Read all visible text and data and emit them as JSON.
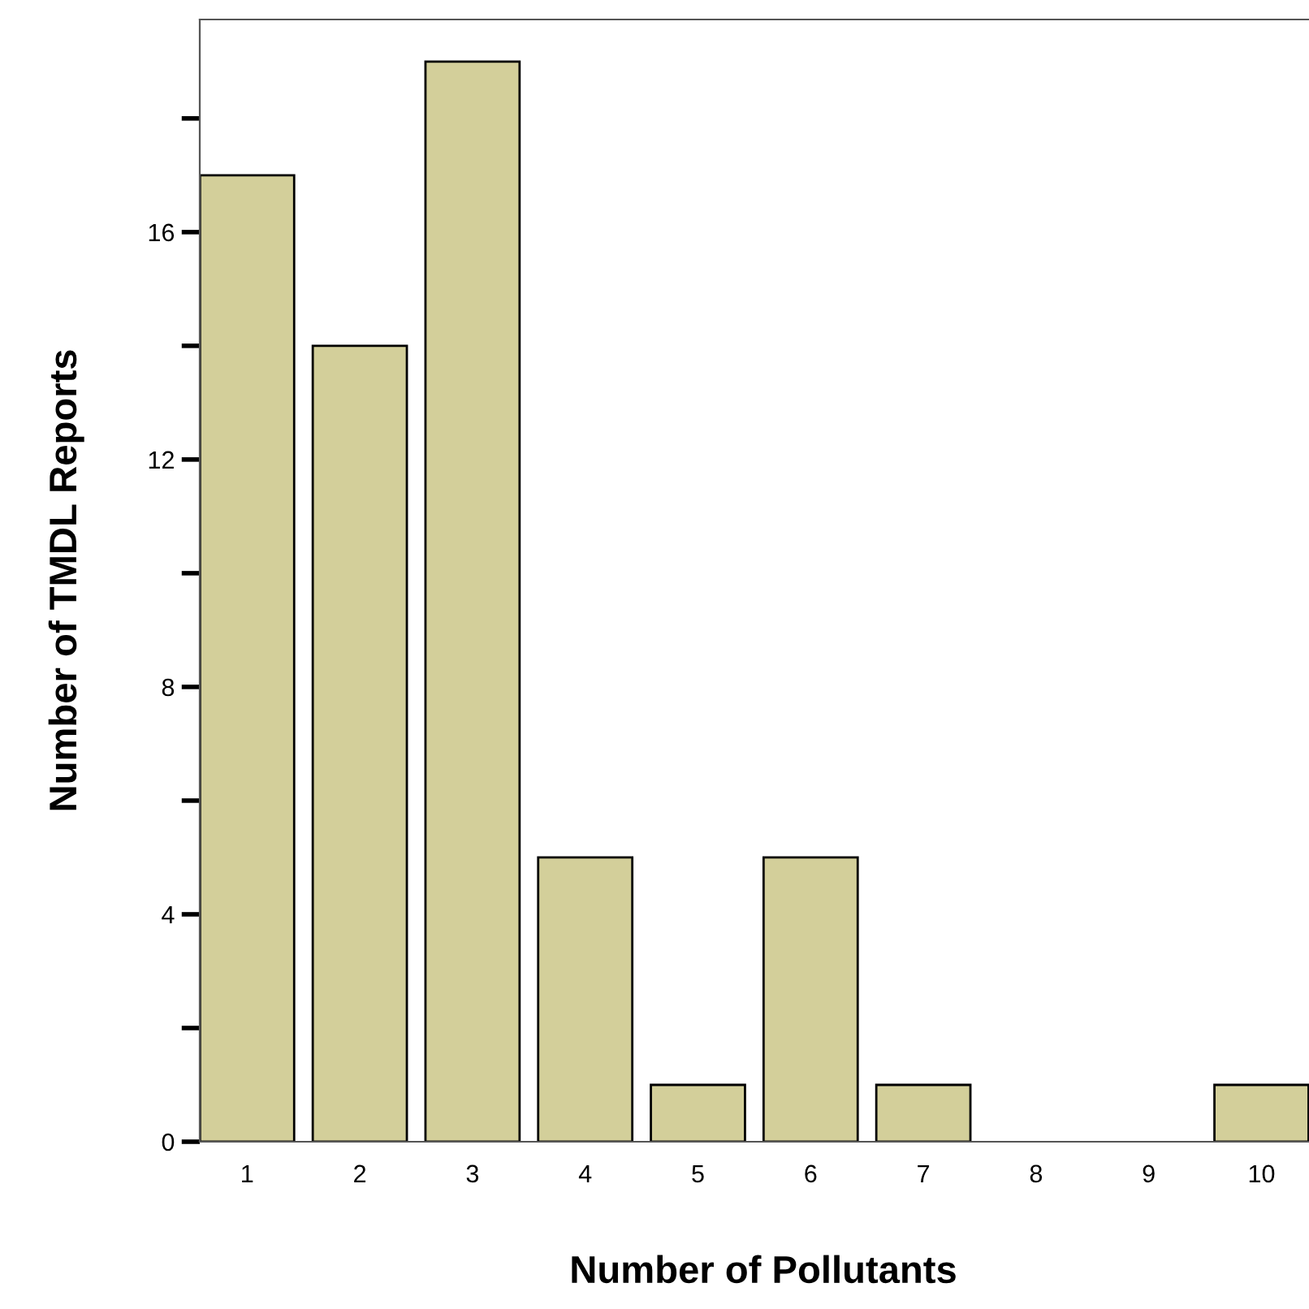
{
  "chart_data": {
    "type": "bar",
    "xlabel": "Number of Pollutants",
    "ylabel": "Number of TMDL Reports",
    "categories": [
      "1",
      "2",
      "3",
      "4",
      "5",
      "6",
      "7",
      "8",
      "9",
      "10"
    ],
    "values": [
      17,
      14,
      19,
      5,
      1,
      5,
      1,
      0,
      0,
      1
    ],
    "color": "#d3cf9a",
    "ylim": [
      0,
      19.74
    ],
    "yticks": [
      0,
      {
        "value": 2,
        "label": null
      },
      4,
      {
        "value": 6,
        "label": null
      },
      8,
      {
        "value": 10,
        "label": null
      },
      12,
      {
        "value": 14,
        "label": null
      },
      16,
      {
        "value": 18,
        "label": null
      }
    ],
    "grid": false
  }
}
